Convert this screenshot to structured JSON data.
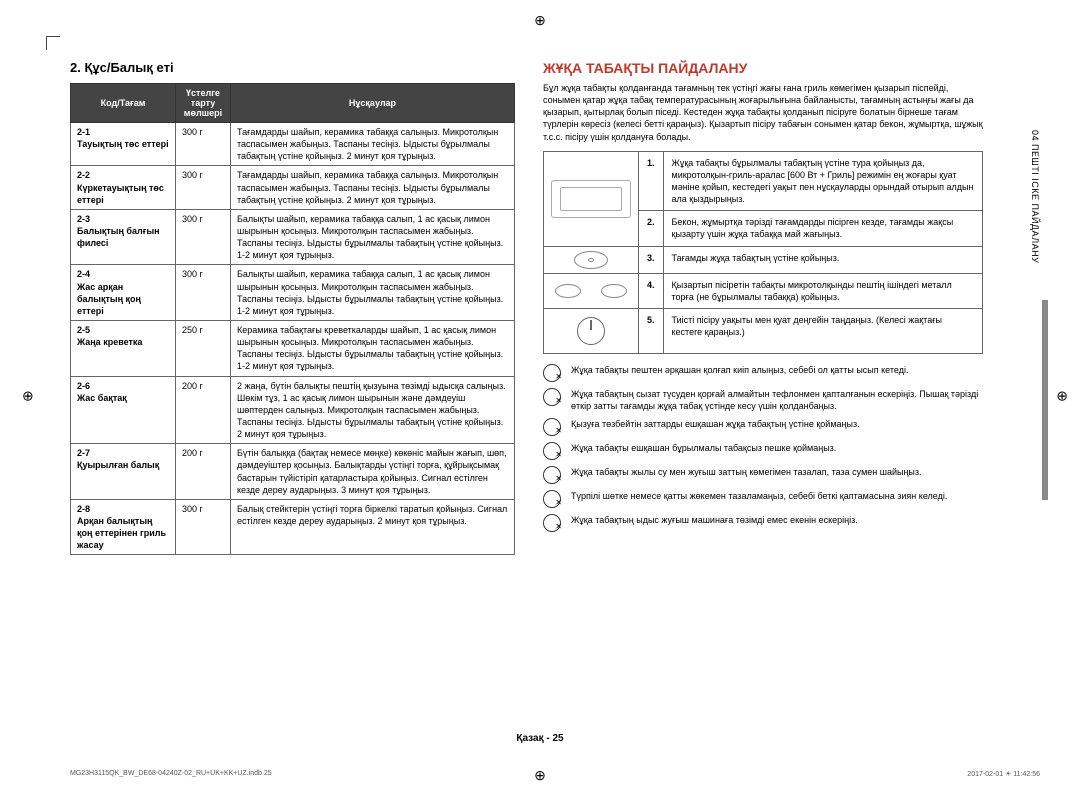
{
  "left": {
    "section_title": "2. Құс/Балық еті",
    "table_headers": {
      "c1": "Код/Тағам",
      "c2": "Үстелге тарту мөлшері",
      "c3": "Нұсқаулар"
    },
    "rows": [
      {
        "code": "2-1",
        "name": "Тауықтың төс еттері",
        "portion": "300 г",
        "instr": "Тағамдарды шайып, керамика табаққа салыңыз. Микротолқын таспасымен жабыңыз. Таспаны тесіңіз. Ыдысты бұрылмалы табақтың үстіне қойыңыз. 2 минут қоя тұрыңыз."
      },
      {
        "code": "2-2",
        "name": "Күркетауықтың төс еттері",
        "portion": "300 г",
        "instr": "Тағамдарды шайып, керамика табаққа салыңыз. Микротолқын таспасымен жабыңыз. Таспаны тесіңіз. Ыдысты бұрылмалы табақтың үстіне қойыңыз. 2 минут қоя тұрыңыз."
      },
      {
        "code": "2-3",
        "name": "Балықтың балғын филесі",
        "portion": "300 г",
        "instr": "Балықты шайып, керамика табаққа салып, 1 ас қасық лимон шырынын қосыңыз. Микротолқын таспасымен жабыңыз. Таспаны тесіңіз. Ыдысты бұрылмалы табақтың үстіне қойыңыз. 1-2 минут қоя тұрыңыз."
      },
      {
        "code": "2-4",
        "name": "Жас арқан балықтың қоң еттері",
        "portion": "300 г",
        "instr": "Балықты шайып, керамика табаққа салып, 1 ас қасық лимон шырынын қосыңыз. Микротолқын таспасымен жабыңыз. Таспаны тесіңіз. Ыдысты бұрылмалы табақтың үстіне қойыңыз. 1-2 минут қоя тұрыңыз."
      },
      {
        "code": "2-5",
        "name": "Жаңа креветка",
        "portion": "250 г",
        "instr": "Керамика табақтағы креветкаларды шайып, 1 ас қасық лимон шырынын қосыңыз. Микротолқын таспасымен жабыңыз. Таспаны тесіңіз. Ыдысты бұрылмалы табақтың үстіне қойыңыз. 1-2 минут қоя тұрыңыз."
      },
      {
        "code": "2-6",
        "name": "Жас бақтақ",
        "portion": "200 г",
        "instr": "2 жаңа, бүтін балықты пештің қызуына төзімді ыдысқа салыңыз. Шөкім тұз, 1 ас қасық лимон шырынын және дәмдеуіш шөптерден салыңыз. Микротолқын таспасымен жабыңыз. Таспаны тесіңіз. Ыдысты бұрылмалы табақтың үстіне қойыңыз. 2 минут қоя тұрыңыз."
      },
      {
        "code": "2-7",
        "name": "Қуырылған балық",
        "portion": "200 г",
        "instr": "Бүтін балыққа (бақтақ немесе мөңке) көкөніс майын жағып, шөп, дәмдеуіштер қосыңыз. Балықтарды үстіңгі торға, құйрықсымақ бастарын түйістіріп қатарластыра қойыңыз. Сигнал естілген кезде дереу аударыңыз. 3 минут қоя тұрыңыз."
      },
      {
        "code": "2-8",
        "name": "Арқан балықтың қоң еттерінен гриль жасау",
        "portion": "300 г",
        "instr": "Балық стейктерін үстіңгі торға біркелкі таратып қойыңыз. Сигнал естілген кезде дереу аударыңыз. 2 минут қоя тұрыңыз."
      }
    ]
  },
  "right": {
    "title": "ЖҰҚА ТАБАҚТЫ ПАЙДАЛАНУ",
    "intro": "Бұл жұқа табақты қолданғанда тағамның тек үстіңгі жағы ғана гриль көмегімен қызарып піспейді, сонымен қатар жұқа табақ температурасының жоғарылығына байланысты, тағамның астыңғы жағы да қызарып, қытырлақ болып піседі. Кестеден жұқа табақты қолданып пісіруге болатын бірнеше тағам түрлерін көресіз (келесі бетті қараңыз). Қызартып пісіру табағын сонымен қатар бекон, жұмыртқа, шұжық т.с.с. пісіру үшін қолдануға болады.",
    "steps": [
      {
        "n": "1.",
        "text": "Жұқа табақты бұрылмалы табақтың үстіне тура қойыңыз да, микротолқын-гриль-аралас [600 Вт + Гриль] режимін ең жоғары қуат мәніне қойып, кестедегі уақыт пен нұсқауларды орындай отырып алдын ала қыздырыңыз.",
        "illus": "oven"
      },
      {
        "n": "2.",
        "text": "Бекон, жұмыртқа тәрізді тағамдарды пісірген кезде, тағамды жақсы қызарту үшін жұқа табаққа май жағыңыз.",
        "illus": "none"
      },
      {
        "n": "3.",
        "text": "Тағамды жұқа табақтың үстіне қойыңыз.",
        "illus": "plate"
      },
      {
        "n": "4.",
        "text": "Қызартып пісіретін табақты микротолқынды пештің ішіндегі металл торға (не бұрылмалы табаққа) қойыңыз.",
        "illus": "plates"
      },
      {
        "n": "5.",
        "text": "Тиісті пісіру уақыты мен қуат деңгейін таңдаңыз. (Келесі жақтағы кестеге қараңыз.)",
        "illus": "knob"
      }
    ],
    "tips": [
      "Жұқа табақты пештен әрқашан қолғап киіп алыңыз, себебі ол қатты ысып кетеді.",
      "Жұқа табақтың сызат түсуден қорғай алмайтын тефлонмен қапталғанын ескеріңіз. Пышақ тәрізді өткір затты тағамды жұқа табақ үстінде кесу үшін қолданбаңыз.",
      "Қызуға төзбейтін заттарды ешқашан жұқа табақтың үстіне қоймаңыз.",
      "Жұқа табақты ешқашан бұрылмалы табақсыз пешке қоймаңыз.",
      "Жұқа табақты жылы су мен жуғыш заттың көмегімен тазалап, таза сумен шайыңыз.",
      "Түрпілі шөтке немесе қатты жөкемен тазаламаңыз, себебі беткі қаптамасына зиян келеді.",
      "Жұқа табақтың ыдыс жуғыш машинаға төзімді емес екенін ескеріңіз."
    ]
  },
  "side_tab": "04  ПЕШТІ ІСКЕ ПАЙДАЛАНУ",
  "footer_page": "Қазақ - 25",
  "footer_meta_left": "MG23H3115QK_BW_DE68-04240Z-02_RU+UK+KK+UZ.indb   25",
  "footer_meta_right": "2017-02-01   ☀ 11:42:56"
}
